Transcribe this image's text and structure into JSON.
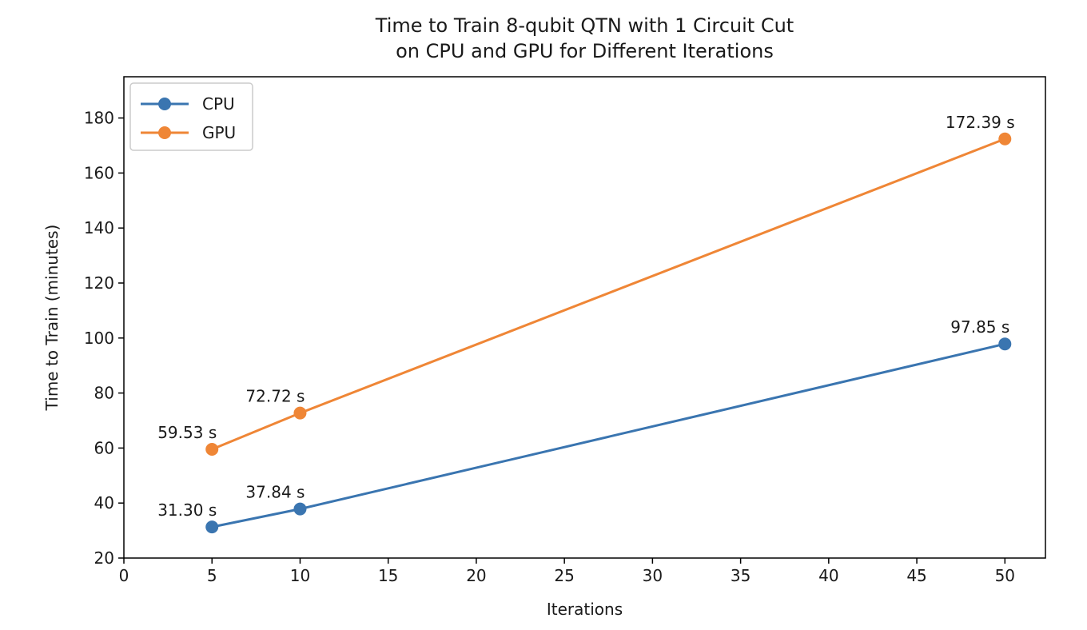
{
  "chart_data": {
    "type": "line",
    "title": "Time to Train 8-qubit QTN with 1 Circuit Cut\non CPU and GPU for Different Iterations",
    "xlabel": "Iterations",
    "ylabel": "Time to Train (minutes)",
    "xlim": [
      0,
      52.3
    ],
    "ylim": [
      20,
      195
    ],
    "xticks": [
      0,
      5,
      10,
      15,
      20,
      25,
      30,
      35,
      40,
      45,
      50
    ],
    "yticks": [
      20,
      40,
      60,
      80,
      100,
      120,
      140,
      160,
      180
    ],
    "grid": false,
    "legend_position": "top-left",
    "x": [
      5,
      10,
      50
    ],
    "series": [
      {
        "name": "CPU",
        "color": "#3a75b0",
        "values": [
          31.3,
          37.84,
          97.85
        ],
        "labels": [
          "31.30 s",
          "37.84 s",
          "97.85 s"
        ]
      },
      {
        "name": "GPU",
        "color": "#ef8636",
        "values": [
          59.53,
          72.72,
          172.39
        ],
        "labels": [
          "59.53 s",
          "72.72 s",
          "172.39 s"
        ]
      }
    ]
  }
}
